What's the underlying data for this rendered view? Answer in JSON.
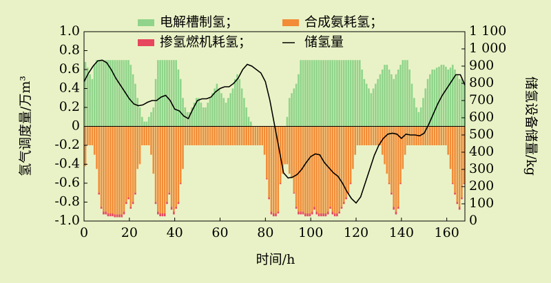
{
  "chart_data": {
    "type": "bar",
    "xlabel": "时间/h",
    "ylabel": "氢气调度量/万m³",
    "y2label": "储氢设备储量/kg",
    "xlim": [
      0,
      168
    ],
    "xticks": [
      0,
      20,
      40,
      60,
      80,
      100,
      120,
      140,
      160
    ],
    "ylim": [
      -1,
      1
    ],
    "yticks": [
      {
        "value": -1,
        "label": "-1.0"
      },
      -0.8,
      -0.6,
      -0.4,
      -0.2,
      0,
      0.2,
      0.4,
      0.6,
      0.8,
      {
        "value": 1,
        "label": "1.0"
      }
    ],
    "y2lim": [
      0,
      1100
    ],
    "y2ticks": [
      0,
      100,
      200,
      300,
      400,
      500,
      600,
      700,
      800,
      900,
      {
        "value": 1000,
        "label": "1 000"
      },
      {
        "value": 1100,
        "label": "1 100"
      }
    ],
    "x": [
      1,
      2,
      3,
      4,
      5,
      6,
      7,
      8,
      9,
      10,
      11,
      12,
      13,
      14,
      15,
      16,
      17,
      18,
      19,
      20,
      21,
      22,
      23,
      24,
      25,
      26,
      27,
      28,
      29,
      30,
      31,
      32,
      33,
      34,
      35,
      36,
      37,
      38,
      39,
      40,
      41,
      42,
      43,
      44,
      45,
      46,
      47,
      48,
      49,
      50,
      51,
      52,
      53,
      54,
      55,
      56,
      57,
      58,
      59,
      60,
      61,
      62,
      63,
      64,
      65,
      66,
      67,
      68,
      69,
      70,
      71,
      72,
      73,
      74,
      75,
      76,
      77,
      78,
      79,
      80,
      81,
      82,
      83,
      84,
      85,
      86,
      87,
      88,
      89,
      90,
      91,
      92,
      93,
      94,
      95,
      96,
      97,
      98,
      99,
      100,
      101,
      102,
      103,
      104,
      105,
      106,
      107,
      108,
      109,
      110,
      111,
      112,
      113,
      114,
      115,
      116,
      117,
      118,
      119,
      120,
      121,
      122,
      123,
      124,
      125,
      126,
      127,
      128,
      129,
      130,
      131,
      132,
      133,
      134,
      135,
      136,
      137,
      138,
      139,
      140,
      141,
      142,
      143,
      144,
      145,
      146,
      147,
      148,
      149,
      150,
      151,
      152,
      153,
      154,
      155,
      156,
      157,
      158,
      159,
      160,
      161,
      162,
      163,
      164,
      165,
      166,
      167,
      168
    ],
    "series": [
      {
        "name": "电解槽制氢；",
        "color": "#8fd48a",
        "values": [
          0.68,
          0.62,
          0.55,
          0.5,
          0.65,
          0.7,
          0.7,
          0.7,
          0.7,
          0.7,
          0.7,
          0.7,
          0.7,
          0.7,
          0.7,
          0.7,
          0.7,
          0.7,
          0.7,
          0.7,
          0.65,
          0.55,
          0.45,
          0.3,
          0.2,
          0.1,
          0.05,
          0.05,
          0.1,
          0.15,
          0.2,
          0.5,
          0.7,
          0.7,
          0.7,
          0.7,
          0.7,
          0.7,
          0.7,
          0.7,
          0.7,
          0.6,
          0.5,
          0.3,
          0.2,
          0.15,
          0.15,
          0.2,
          0.25,
          0.3,
          0.3,
          0.25,
          0.2,
          0.2,
          0.25,
          0.3,
          0.35,
          0.4,
          0.45,
          0.4,
          0.35,
          0.3,
          0.25,
          0.3,
          0.35,
          0.4,
          0.5,
          0.55,
          0.5,
          0.4,
          0.3,
          0.2,
          0.1,
          0.05,
          0,
          0,
          0,
          0,
          0,
          0,
          0,
          0,
          0,
          0,
          0,
          0,
          0,
          0,
          0,
          0.1,
          0.3,
          0.35,
          0.4,
          0.45,
          0.55,
          0.7,
          0.7,
          0.7,
          0.7,
          0.7,
          0.7,
          0.7,
          0.7,
          0.7,
          0.7,
          0.7,
          0.7,
          0.7,
          0.7,
          0.7,
          0.7,
          0.7,
          0.7,
          0.7,
          0.7,
          0.7,
          0.7,
          0.7,
          0.7,
          0.7,
          0.7,
          0.7,
          0.6,
          0.5,
          0.45,
          0.4,
          0.35,
          0.4,
          0.45,
          0.5,
          0.55,
          0.6,
          0.65,
          0.65,
          0.6,
          0.55,
          0.5,
          0.55,
          0.6,
          0.65,
          0.7,
          0.7,
          0.7,
          0.6,
          0.45,
          0.3,
          0.2,
          0.15,
          0.2,
          0.3,
          0.4,
          0.5,
          0.55,
          0.6,
          0.6,
          0.62,
          0.63,
          0.65,
          0.65,
          0.63,
          0.6,
          0.62,
          0.65,
          0.6,
          0.55,
          0.5,
          0.5,
          0.45
        ]
      },
      {
        "name": "合成氨耗氢；",
        "color": "#f28c36",
        "values": [
          -0.42,
          -0.2,
          -0.2,
          -0.2,
          -0.3,
          -0.45,
          -0.7,
          -0.85,
          -0.9,
          -0.9,
          -0.92,
          -0.92,
          -0.92,
          -0.93,
          -0.93,
          -0.93,
          -0.93,
          -0.9,
          -0.8,
          -0.75,
          -0.85,
          -0.8,
          -0.7,
          -0.45,
          -0.4,
          -0.2,
          -0.2,
          -0.2,
          -0.2,
          -0.3,
          -0.5,
          -0.8,
          -0.9,
          -0.92,
          -0.92,
          -0.92,
          -0.8,
          -0.7,
          -0.85,
          -0.9,
          -0.85,
          -0.8,
          -0.6,
          -0.45,
          -0.2,
          -0.2,
          -0.2,
          -0.2,
          -0.2,
          -0.2,
          -0.2,
          -0.2,
          -0.2,
          -0.2,
          -0.2,
          -0.2,
          -0.2,
          -0.2,
          -0.2,
          -0.2,
          -0.2,
          -0.2,
          -0.2,
          -0.2,
          -0.2,
          -0.2,
          -0.2,
          -0.2,
          -0.2,
          -0.2,
          -0.2,
          -0.2,
          -0.2,
          -0.2,
          -0.2,
          -0.2,
          -0.2,
          -0.2,
          -0.2,
          -0.3,
          -0.55,
          -0.75,
          -0.9,
          -0.92,
          -0.92,
          -0.9,
          -0.6,
          -0.5,
          -0.4,
          -0.4,
          -0.5,
          -0.55,
          -0.7,
          -0.85,
          -0.9,
          -0.9,
          -0.9,
          -0.92,
          -0.92,
          -0.92,
          -0.9,
          -0.85,
          -0.9,
          -0.92,
          -0.92,
          -0.92,
          -0.92,
          -0.9,
          -0.85,
          -0.9,
          -0.92,
          -0.92,
          -0.9,
          -0.85,
          -0.8,
          -0.75,
          -0.7,
          -0.6,
          -0.45,
          -0.3,
          -0.2,
          -0.2,
          -0.2,
          -0.2,
          -0.2,
          -0.2,
          -0.2,
          -0.2,
          -0.2,
          -0.2,
          -0.2,
          -0.3,
          -0.4,
          -0.5,
          -0.6,
          -0.7,
          -0.85,
          -0.9,
          -0.85,
          -0.6,
          -0.45,
          -0.3,
          -0.2,
          -0.2,
          -0.2,
          -0.2,
          -0.2,
          -0.2,
          -0.2,
          -0.2,
          -0.2,
          -0.2,
          -0.2,
          -0.2,
          -0.2,
          -0.2,
          -0.2,
          -0.2,
          -0.2,
          -0.2,
          -0.3,
          -0.45,
          -0.6,
          -0.7,
          -0.8,
          -0.85,
          -0.75,
          -0.6
        ]
      },
      {
        "name": "掺氢燃机耗氢；",
        "color": "#e6465e",
        "values": [
          0,
          0,
          0,
          0,
          0,
          0,
          -0.02,
          -0.02,
          -0.03,
          -0.03,
          -0.03,
          -0.03,
          -0.03,
          -0.03,
          -0.03,
          -0.03,
          -0.03,
          -0.03,
          -0.02,
          -0.02,
          -0.02,
          -0.02,
          -0.02,
          0,
          0,
          0,
          0,
          0,
          0,
          0,
          0,
          -0.02,
          -0.03,
          -0.03,
          -0.03,
          -0.03,
          -0.02,
          -0.02,
          -0.03,
          -0.03,
          -0.02,
          -0.02,
          -0.01,
          0,
          0,
          0,
          0,
          0,
          0,
          0,
          0,
          0,
          0,
          0,
          0,
          0,
          0,
          0,
          0,
          0,
          0,
          0,
          0,
          0,
          0,
          0,
          0,
          0,
          0,
          0,
          0,
          0,
          0,
          0,
          0,
          0,
          0,
          0,
          0,
          0,
          -0.01,
          -0.02,
          -0.03,
          -0.03,
          -0.03,
          -0.02,
          -0.01,
          0,
          0,
          0,
          0,
          0,
          -0.01,
          -0.02,
          -0.03,
          -0.03,
          -0.03,
          -0.03,
          -0.03,
          -0.03,
          -0.03,
          -0.03,
          -0.03,
          -0.03,
          -0.03,
          -0.03,
          -0.03,
          -0.03,
          -0.02,
          -0.03,
          -0.03,
          -0.03,
          -0.02,
          -0.02,
          -0.02,
          -0.02,
          -0.01,
          -0.01,
          0,
          0,
          0,
          0,
          0,
          0,
          0,
          0,
          0,
          0,
          0,
          0,
          0,
          0,
          0,
          0,
          -0.01,
          -0.02,
          -0.03,
          -0.03,
          -0.02,
          -0.01,
          0,
          0,
          0,
          0,
          0,
          0,
          0,
          0,
          0,
          0,
          0,
          0,
          0,
          0,
          0,
          0,
          0,
          0,
          0,
          0,
          0,
          0,
          -0.01,
          -0.02,
          -0.02,
          -0.03,
          -0.02,
          -0.01
        ]
      },
      {
        "name": "储氢量",
        "type": "line",
        "axis": "y2",
        "color": "#000000",
        "x": [
          0,
          2,
          4,
          6,
          8,
          10,
          12,
          14,
          16,
          18,
          20,
          22,
          24,
          26,
          28,
          30,
          32,
          34,
          36,
          38,
          40,
          42,
          44,
          46,
          48,
          50,
          52,
          54,
          56,
          58,
          60,
          62,
          64,
          66,
          68,
          70,
          72,
          74,
          76,
          78,
          80,
          82,
          84,
          86,
          88,
          90,
          92,
          94,
          96,
          98,
          100,
          102,
          104,
          106,
          108,
          110,
          112,
          114,
          116,
          118,
          120,
          122,
          124,
          126,
          128,
          130,
          132,
          134,
          136,
          138,
          140,
          142,
          144,
          146,
          148,
          150,
          152,
          154,
          156,
          158,
          160,
          162,
          164,
          166,
          168
        ],
        "values": [
          810,
          860,
          900,
          930,
          935,
          920,
          880,
          830,
          790,
          750,
          710,
          680,
          670,
          675,
          690,
          700,
          700,
          720,
          730,
          700,
          650,
          640,
          610,
          595,
          650,
          700,
          710,
          710,
          720,
          750,
          770,
          780,
          780,
          800,
          830,
          880,
          910,
          900,
          880,
          860,
          810,
          700,
          560,
          420,
          280,
          250,
          255,
          270,
          300,
          340,
          375,
          390,
          385,
          340,
          310,
          280,
          260,
          220,
          170,
          130,
          105,
          140,
          220,
          300,
          380,
          440,
          480,
          505,
          510,
          505,
          480,
          505,
          500,
          500,
          495,
          510,
          560,
          620,
          680,
          730,
          770,
          810,
          850,
          850,
          790
        ]
      }
    ]
  }
}
